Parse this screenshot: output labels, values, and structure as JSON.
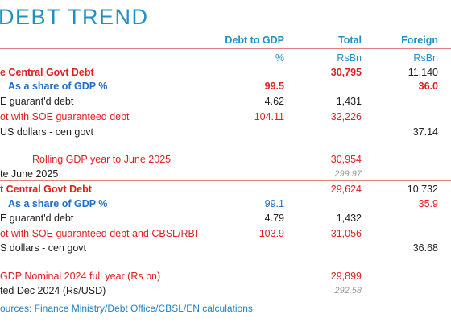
{
  "title": "DEBT TREND",
  "headers": {
    "c2": "Debt to GDP",
    "c3": "Total",
    "c4": "Foreign"
  },
  "units": {
    "c2": "%",
    "c3": "RsBn",
    "c4": "RsBn"
  },
  "block1": {
    "central_debt": {
      "label": "e Central Govt Debt",
      "total": "30,795",
      "foreign": "11,140"
    },
    "share_gdp": {
      "label": "As a share of GDP %",
      "debt_to_gdp": "99.5",
      "foreign": "36.0"
    },
    "soe": {
      "label": "E guarant'd debt",
      "debt_to_gdp": "4.62",
      "total": "1,431"
    },
    "with_soe": {
      "label": "ot with SOE guaranteed debt",
      "debt_to_gdp": "104.11",
      "total": "32,226"
    },
    "usd": {
      "label": "US dollars - cen govt",
      "foreign": "37.14"
    },
    "rolling_gdp": {
      "label": "Rolling GDP year to June 2025",
      "total": "30,954"
    },
    "rate": {
      "label": "te June 2025",
      "total": "299.97"
    }
  },
  "block2": {
    "central_debt": {
      "label": "t Central Govt Debt",
      "total": "29,624",
      "foreign": "10,732"
    },
    "share_gdp": {
      "label": "As a share of GDP %",
      "debt_to_gdp": "99.1",
      "foreign": "35.9"
    },
    "soe": {
      "label": "E guarant'd debt",
      "debt_to_gdp": "4.79",
      "total": "1,432"
    },
    "with_soe": {
      "label": "ot with SOE guaranteed debt and CBSL/RBI",
      "debt_to_gdp": "103.9",
      "total": "31,056"
    },
    "usd": {
      "label": "S dollars - cen govt",
      "foreign": "36.68"
    },
    "gdp_nominal": {
      "label": "GDP Nominal 2024 full year (Rs bn)",
      "total": "29,899"
    },
    "rate": {
      "label": "ted Dec 2024 (Rs/USD)",
      "total": "292.58"
    }
  },
  "source": "ources: Finance Ministry/Debt Office/CBSL/EN calculations"
}
